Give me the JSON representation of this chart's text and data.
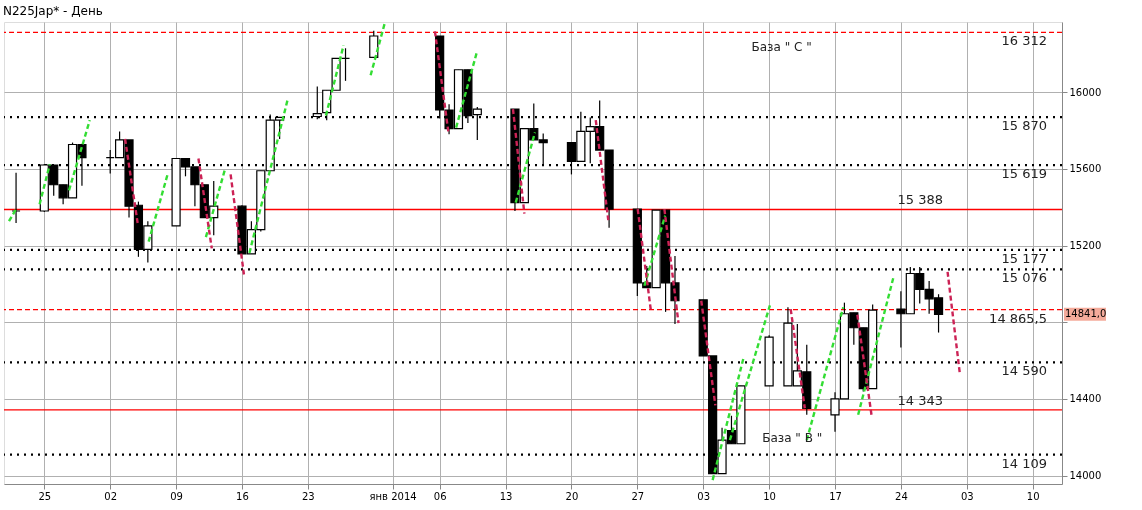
{
  "chart_data": {
    "type": "candlestick",
    "title": "N225Jap* - День",
    "x": [
      "2013-11-22",
      "2013-11-25",
      "2013-11-26",
      "2013-11-27",
      "2013-11-28",
      "2013-11-29",
      "2013-12-02",
      "2013-12-03",
      "2013-12-04",
      "2013-12-05",
      "2013-12-06",
      "2013-12-09",
      "2013-12-10",
      "2013-12-11",
      "2013-12-12",
      "2013-12-13",
      "2013-12-16",
      "2013-12-17",
      "2013-12-18",
      "2013-12-19",
      "2013-12-20",
      "2013-12-24",
      "2013-12-25",
      "2013-12-26",
      "2013-12-27",
      "2013-12-30",
      "2014-01-06",
      "2014-01-07",
      "2014-01-08",
      "2014-01-09",
      "2014-01-10",
      "2014-01-14",
      "2014-01-15",
      "2014-01-16",
      "2014-01-17",
      "2014-01-20",
      "2014-01-21",
      "2014-01-22",
      "2014-01-23",
      "2014-01-24",
      "2014-01-27",
      "2014-01-28",
      "2014-01-29",
      "2014-01-30",
      "2014-01-31",
      "2014-02-03",
      "2014-02-04",
      "2014-02-05",
      "2014-02-06",
      "2014-02-07",
      "2014-02-10",
      "2014-02-12",
      "2014-02-13",
      "2014-02-14",
      "2014-02-17",
      "2014-02-18",
      "2014-02-19",
      "2014-02-20",
      "2014-02-21",
      "2014-02-24",
      "2014-02-25",
      "2014-02-26",
      "2014-02-27",
      "2014-02-28"
    ],
    "ohlc": [
      [
        15380,
        15580,
        15317,
        15380
      ],
      [
        15380,
        15625,
        15375,
        15620
      ],
      [
        15620,
        15620,
        15459,
        15517
      ],
      [
        15517,
        15517,
        15415,
        15449
      ],
      [
        15449,
        15737,
        15449,
        15727
      ],
      [
        15727,
        15727,
        15512,
        15659
      ],
      [
        15659,
        15698,
        15576,
        15659
      ],
      [
        15659,
        15795,
        15659,
        15751
      ],
      [
        15751,
        15751,
        15346,
        15405
      ],
      [
        15410,
        15429,
        15141,
        15180
      ],
      [
        15180,
        15327,
        15112,
        15302
      ],
      [
        15302,
        15654,
        15302,
        15654
      ],
      [
        15654,
        15654,
        15561,
        15610
      ],
      [
        15610,
        15610,
        15405,
        15517
      ],
      [
        15517,
        15517,
        15346,
        15346
      ],
      [
        15346,
        15537,
        15254,
        15405
      ],
      [
        15405,
        15410,
        15156,
        15156
      ],
      [
        15156,
        15327,
        15156,
        15283
      ],
      [
        15283,
        15590,
        15273,
        15590
      ],
      [
        15590,
        15883,
        15590,
        15854
      ],
      [
        15854,
        15870,
        15756,
        15868
      ],
      [
        15873,
        16029,
        15859,
        15888
      ],
      [
        15893,
        16010,
        15854,
        16010
      ],
      [
        16010,
        16176,
        16010,
        16176
      ],
      [
        16176,
        16229,
        16059,
        16176
      ],
      [
        16181,
        16320,
        16181,
        16293
      ],
      [
        16293,
        16293,
        15863,
        15907
      ],
      [
        15907,
        15937,
        15780,
        15810
      ],
      [
        15810,
        16117,
        15810,
        16117
      ],
      [
        16117,
        16117,
        15839,
        15878
      ],
      [
        15883,
        15922,
        15751,
        15912
      ],
      [
        15912,
        15912,
        15380,
        15424
      ],
      [
        15424,
        15810,
        15424,
        15810
      ],
      [
        15810,
        15941,
        15751,
        15751
      ],
      [
        15751,
        15785,
        15620,
        15737
      ],
      [
        15737,
        15737,
        15571,
        15639
      ],
      [
        15639,
        15898,
        15639,
        15795
      ],
      [
        15795,
        15868,
        15629,
        15820
      ],
      [
        15820,
        15956,
        15698,
        15698
      ],
      [
        15698,
        15698,
        15293,
        15390
      ],
      [
        15390,
        15390,
        14937,
        15005
      ],
      [
        15005,
        15093,
        14980,
        14980
      ],
      [
        14980,
        15385,
        14980,
        15385
      ],
      [
        15385,
        15385,
        14854,
        15005
      ],
      [
        15005,
        15146,
        14790,
        14912
      ],
      [
        14917,
        14917,
        14624,
        14624
      ],
      [
        14624,
        14624,
        14010,
        14010
      ],
      [
        14010,
        14249,
        14010,
        14185
      ],
      [
        14234,
        14312,
        14166,
        14166
      ],
      [
        14166,
        14468,
        14166,
        14468
      ],
      [
        14468,
        14732,
        14468,
        14722
      ],
      [
        14468,
        14878,
        14468,
        14795
      ],
      [
        14468,
        14790,
        14468,
        14546
      ],
      [
        14541,
        14683,
        14317,
        14351
      ],
      [
        14317,
        14434,
        14229,
        14400
      ],
      [
        14400,
        14902,
        14400,
        14844
      ],
      [
        14849,
        14849,
        14683,
        14771
      ],
      [
        14771,
        14771,
        14439,
        14454
      ],
      [
        14454,
        14893,
        14454,
        14863
      ],
      [
        14868,
        14961,
        14668,
        14844
      ],
      [
        14844,
        15088,
        14844,
        15054
      ],
      [
        15054,
        15088,
        14898,
        14971
      ],
      [
        14971,
        15015,
        14844,
        14922
      ],
      [
        14927,
        14946,
        14746,
        14841
      ]
    ],
    "series": [
      {
        "type": "line",
        "color": "#33dd33",
        "line_style": "dashed",
        "x": [
          "2013-11-21T06:00",
          "2013-11-22",
          null,
          "2013-11-24T12:00",
          "2013-11-25T14:00",
          null,
          "2013-11-27T15:00",
          "2013-11-29T20:00",
          null,
          "2013-12-06T02:00",
          "2013-12-08T03:00",
          null,
          "2013-12-12T04:00",
          "2013-12-14T05:00",
          null,
          "2013-12-16T19:00",
          "2013-12-20T21:00",
          null,
          "2013-12-24T22:00",
          "2013-12-26T19:00",
          null,
          "2013-12-29T16:00",
          "2013-12-31T04:00",
          null,
          "2014-01-07T18:00",
          "2014-01-09T23:00",
          null,
          "2014-01-14T02:00",
          "2014-01-16T03:00",
          null,
          "2014-01-27T18:00",
          "2014-01-29T23:00",
          null,
          "2014-02-04",
          "2014-02-07T08:00",
          null,
          "2014-02-05T20:00",
          "2014-02-10T02:00",
          null,
          "2014-02-14",
          "2014-02-17T21:00",
          null,
          "2014-02-19T11:00",
          "2014-02-23T05:00"
        ],
        "values": [
          15327,
          15390,
          null,
          15415,
          15624,
          null,
          15488,
          15854,
          null,
          15220,
          15576,
          null,
          15244,
          15600,
          null,
          15161,
          15966,
          null,
          15878,
          16244,
          null,
          16088,
          16360,
          null,
          15815,
          16210,
          null,
          15424,
          15790,
          null,
          14990,
          15356,
          null,
          13976,
          14624,
          null,
          14185,
          14888,
          null,
          14185,
          14878,
          null,
          14317,
          15034
        ]
      },
      {
        "type": "line",
        "color": "#cc2255",
        "line_style": "dashed",
        "x": [
          "2013-12-03T14:00",
          "2013-12-04T22:00",
          null,
          "2013-12-11T09:00",
          "2013-12-12T19:00",
          null,
          "2013-12-14T19:00",
          "2013-12-16T05:00",
          null,
          "2014-01-05T12:00",
          "2014-01-06T22:00",
          null,
          "2014-01-13T19:00",
          "2014-01-15",
          null,
          "2014-01-22T14:00",
          "2014-01-23T22:00",
          null,
          "2014-01-27T01:00",
          "2014-01-28T11:00",
          null,
          "2014-01-29T21:00",
          "2014-01-31T09:00",
          null,
          "2014-02-02T19:00",
          "2014-02-04T07:00",
          null,
          "2014-02-12T07:00",
          "2014-02-13T19:00",
          null,
          "2014-02-19T09:00",
          "2014-02-20T21:00",
          null,
          "2014-02-28T23:00",
          "2014-03-02T06:00"
        ],
        "values": [
          15756,
          15317,
          null,
          15654,
          15185,
          null,
          15571,
          15049,
          null,
          16317,
          15795,
          null,
          15912,
          15366,
          null,
          15854,
          15332,
          null,
          15390,
          14854,
          null,
          15390,
          14795,
          null,
          14912,
          14366,
          null,
          14868,
          14351,
          null,
          14839,
          14317,
          null,
          15063,
          14537
        ]
      }
    ],
    "xlim": [
      "2013-11-21T06:00",
      "2014-03-12T14:00"
    ],
    "xticks": [
      {
        "value": "2013-11-25",
        "label": "25"
      },
      {
        "value": "2013-12-02",
        "label": "02"
      },
      {
        "value": "2013-12-09",
        "label": "09"
      },
      {
        "value": "2013-12-16",
        "label": "16"
      },
      {
        "value": "2013-12-23",
        "label": "23"
      },
      {
        "value": "2014-01-01",
        "label": "янв 2014"
      },
      {
        "value": "2014-01-06",
        "label": "06"
      },
      {
        "value": "2014-01-13",
        "label": "13"
      },
      {
        "value": "2014-01-20",
        "label": "20"
      },
      {
        "value": "2014-01-27",
        "label": "27"
      },
      {
        "value": "2014-02-03",
        "label": "03"
      },
      {
        "value": "2014-02-10",
        "label": "10"
      },
      {
        "value": "2014-02-17",
        "label": "17"
      },
      {
        "value": "2014-02-24",
        "label": "24"
      },
      {
        "value": "2014-03-03",
        "label": "03"
      },
      {
        "value": "2014-03-10",
        "label": "10"
      }
    ],
    "ylim": [
      13956,
      16366
    ],
    "yticks": [
      14000,
      14400,
      {
        "value": 14800,
        "label": null
      },
      15200,
      15600,
      16000
    ],
    "grid": true,
    "ref_lines": [
      {
        "axis": "y",
        "value": 16312,
        "label": "16 312",
        "color": "#ff0000",
        "line_style": "dashed"
      },
      {
        "axis": "y",
        "value": 15870,
        "label": "15 870",
        "color": "#000000",
        "line_style": "dotted"
      },
      {
        "axis": "y",
        "value": 15619,
        "label": "15 619",
        "color": "#000000",
        "line_style": "dotted"
      },
      {
        "axis": "y",
        "value": 15388,
        "label": "15 388",
        "color": "#ff0000",
        "line_style": "solid"
      },
      {
        "axis": "y",
        "value": 15177,
        "label": "15 177",
        "color": "#000000",
        "line_style": "dotted"
      },
      {
        "axis": "y",
        "value": 15076,
        "label": "15 076",
        "color": "#000000",
        "line_style": "dotted"
      },
      {
        "axis": "y",
        "value": 14865.5,
        "label": "14 865,5",
        "color": "#ff0000",
        "line_style": "dashed"
      },
      {
        "axis": "y",
        "value": 14590,
        "label": "14 590",
        "color": "#000000",
        "line_style": "dotted"
      },
      {
        "axis": "y",
        "value": 14343,
        "label": "14 343",
        "color": "#ff0000",
        "line_style": "solid"
      },
      {
        "axis": "y",
        "value": 14109,
        "label": "14 109",
        "color": "#000000",
        "line_style": "dotted"
      }
    ],
    "annotations": [
      "База \" C \"",
      "База \" B \"",
      "14841,0"
    ]
  }
}
